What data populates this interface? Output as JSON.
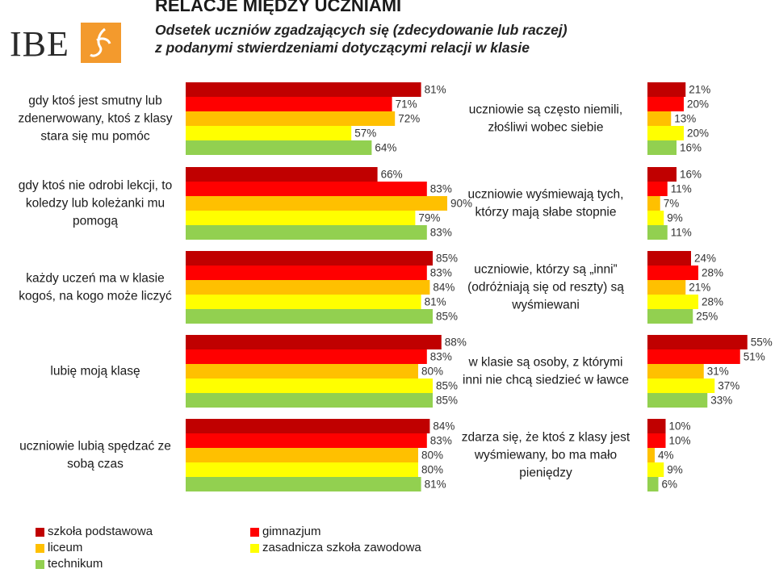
{
  "header": {
    "title": "RELACJE MIĘDZY UCZNIAMI",
    "subtitle_line1": "Odsetek uczniów zgadzających się (zdecydowanie lub raczej)",
    "subtitle_line2": "z podanymi stwierdzeniami dotyczącymi relacji w klasie",
    "logo_text": "IBE"
  },
  "colors": {
    "szkola_podstawowa": "#c00000",
    "gimnazjum": "#ff0000",
    "liceum": "#ffc000",
    "zasadnicza": "#ffff00",
    "technikum": "#92d050"
  },
  "legend": [
    {
      "label": "szkoła podstawowa",
      "color": "#c00000"
    },
    {
      "label": "gimnazjum",
      "color": "#ff0000"
    },
    {
      "label": "liceum",
      "color": "#ffc000"
    },
    {
      "label": "zasadnicza szkoła zawodowa",
      "color": "#ffff00"
    },
    {
      "label": "technikum",
      "color": "#92d050"
    }
  ],
  "chart_data": [
    {
      "type": "bar",
      "title": "gdy ktoś jest smutny lub zdenerwowany, ktoś z klasy stara się mu pomóc",
      "label_lines": [
        "gdy ktoś jest smutny lub",
        "zdenerwowany, ktoś z klasy",
        "stara się mu pomóc"
      ],
      "categories": [
        "szkoła podstawowa",
        "gimnazjum",
        "liceum",
        "zasadnicza szkoła zawodowa",
        "technikum"
      ],
      "values": [
        81,
        71,
        72,
        57,
        64
      ],
      "labels": [
        "81%",
        "71%",
        "72%",
        "57%",
        "64%"
      ]
    },
    {
      "type": "bar",
      "title": "gdy ktoś nie odrobi lekcji, to koledzy lub koleżanki mu pomogą",
      "label_lines": [
        "gdy ktoś nie odrobi lekcji, to",
        "koledzy lub koleżanki mu",
        "pomogą"
      ],
      "categories": [
        "szkoła podstawowa",
        "gimnazjum",
        "liceum",
        "zasadnicza szkoła zawodowa",
        "technikum"
      ],
      "values": [
        66,
        83,
        90,
        79,
        83
      ],
      "labels": [
        "66%",
        "83%",
        "90%",
        "79%",
        "83%"
      ]
    },
    {
      "type": "bar",
      "title": "każdy uczeń ma w klasie kogoś, na kogo może liczyć",
      "label_lines": [
        "każdy uczeń ma w klasie",
        "kogoś, na kogo może liczyć"
      ],
      "categories": [
        "szkoła podstawowa",
        "gimnazjum",
        "liceum",
        "zasadnicza szkoła zawodowa",
        "technikum"
      ],
      "values": [
        85,
        83,
        84,
        81,
        85
      ],
      "labels": [
        "85%",
        "83%",
        "84%",
        "81%",
        "85%"
      ]
    },
    {
      "type": "bar",
      "title": "lubię moją klasę",
      "label_lines": [
        "lubię moją klasę"
      ],
      "categories": [
        "szkoła podstawowa",
        "gimnazjum",
        "liceum",
        "zasadnicza szkoła zawodowa",
        "technikum"
      ],
      "values": [
        88,
        83,
        80,
        85,
        85
      ],
      "labels": [
        "88%",
        "83%",
        "80%",
        "85%",
        "85%"
      ]
    },
    {
      "type": "bar",
      "title": "uczniowie lubią spędzać ze sobą czas",
      "label_lines": [
        "uczniowie lubią spędzać ze",
        "sobą czas"
      ],
      "categories": [
        "szkoła podstawowa",
        "gimnazjum",
        "liceum",
        "zasadnicza szkoła zawodowa",
        "technikum"
      ],
      "values": [
        84,
        83,
        80,
        80,
        81
      ],
      "labels": [
        "84%",
        "83%",
        "80%",
        "80%",
        "81%"
      ]
    },
    {
      "type": "bar",
      "title": "uczniowie są często niemili, złośliwi wobec siebie",
      "label_lines": [
        "uczniowie są często niemili,",
        "złośliwi wobec siebie"
      ],
      "categories": [
        "szkoła podstawowa",
        "gimnazjum",
        "liceum",
        "zasadnicza szkoła zawodowa",
        "technikum"
      ],
      "values": [
        21,
        20,
        13,
        20,
        16
      ],
      "labels": [
        "21%",
        "20%",
        "13%",
        "20%",
        "16%"
      ]
    },
    {
      "type": "bar",
      "title": "uczniowie wyśmiewają tych, którzy mają słabe stopnie",
      "label_lines": [
        "uczniowie wyśmiewają tych,",
        "którzy mają słabe stopnie"
      ],
      "categories": [
        "szkoła podstawowa",
        "gimnazjum",
        "liceum",
        "zasadnicza szkoła zawodowa",
        "technikum"
      ],
      "values": [
        16,
        11,
        7,
        9,
        11
      ],
      "labels": [
        "16%",
        "11%",
        "7%",
        "9%",
        "11%"
      ]
    },
    {
      "type": "bar",
      "title": "uczniowie, którzy są „inni” (odróżniają się od reszty) są wyśmiewani",
      "label_lines": [
        "uczniowie, którzy są „inni”",
        "(odróżniają się od reszty) są",
        "wyśmiewani"
      ],
      "categories": [
        "szkoła podstawowa",
        "gimnazjum",
        "liceum",
        "zasadnicza szkoła zawodowa",
        "technikum"
      ],
      "values": [
        24,
        28,
        21,
        28,
        25
      ],
      "labels": [
        "24%",
        "28%",
        "21%",
        "28%",
        "25%"
      ]
    },
    {
      "type": "bar",
      "title": "w klasie są osoby, z którymi inni nie chcą siedzieć w ławce",
      "label_lines": [
        "w klasie są osoby, z którymi",
        "inni nie chcą siedzieć w ławce"
      ],
      "categories": [
        "szkoła podstawowa",
        "gimnazjum",
        "liceum",
        "zasadnicza szkoła zawodowa",
        "technikum"
      ],
      "values": [
        55,
        51,
        31,
        37,
        33
      ],
      "labels": [
        "55%",
        "51%",
        "31%",
        "37%",
        "33%"
      ]
    },
    {
      "type": "bar",
      "title": "zdarza się, że ktoś z klasy jest wyśmiewany, bo ma mało pieniędzy",
      "label_lines": [
        "zdarza się, że ktoś z klasy jest",
        "wyśmiewany, bo ma mało",
        "pieniędzy"
      ],
      "categories": [
        "szkoła podstawowa",
        "gimnazjum",
        "liceum",
        "zasadnicza szkoła zawodowa",
        "technikum"
      ],
      "values": [
        10,
        10,
        4,
        9,
        6
      ],
      "labels": [
        "10%",
        "10%",
        "4%",
        "9%",
        "6%"
      ]
    }
  ]
}
